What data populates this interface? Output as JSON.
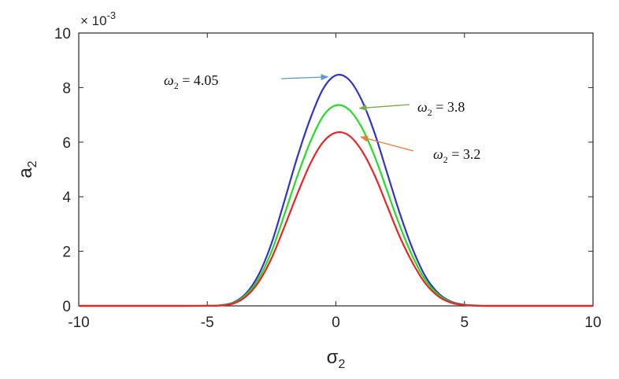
{
  "chart_data": {
    "type": "line",
    "xlabel": "σ",
    "xlabel_sub": "2",
    "ylabel": "a",
    "ylabel_sub": "2",
    "y_multiplier": "× 10",
    "y_multiplier_exp": "-3",
    "xlim": [
      -10,
      10
    ],
    "ylim": [
      0,
      10
    ],
    "xticks": [
      "-10",
      "-5",
      "0",
      "5",
      "10"
    ],
    "yticks": [
      "0",
      "2",
      "4",
      "6",
      "8",
      "10"
    ],
    "grid": false,
    "series": [
      {
        "color": "#3333cc",
        "x": [
          -10,
          -8,
          -6,
          -5,
          -4.5,
          -4,
          -3.5,
          -3,
          -2.5,
          -2,
          -1.5,
          -1,
          -0.5,
          0,
          0.5,
          1,
          1.5,
          2,
          2.5,
          3,
          3.5,
          4,
          4.5,
          5,
          5.5,
          6,
          8,
          10
        ],
        "y": [
          0,
          0,
          0,
          0.003,
          0.02,
          0.12,
          0.45,
          1.15,
          2.3,
          3.85,
          5.45,
          6.85,
          7.95,
          8.45,
          8.3,
          7.55,
          6.35,
          4.85,
          3.35,
          2.05,
          1.05,
          0.45,
          0.15,
          0.04,
          0.01,
          0,
          0,
          0
        ]
      },
      {
        "color": "#22dd22",
        "x": [
          -10,
          -8,
          -6,
          -5,
          -4.5,
          -4,
          -3.5,
          -3,
          -2.5,
          -2,
          -1.5,
          -1,
          -0.5,
          0,
          0.5,
          1,
          1.5,
          2,
          2.5,
          3,
          3.5,
          4,
          4.5,
          5,
          5.5,
          6,
          8,
          10
        ],
        "y": [
          0,
          0,
          0,
          0.003,
          0.02,
          0.1,
          0.4,
          1.0,
          2.0,
          3.35,
          4.75,
          6.0,
          6.95,
          7.35,
          7.2,
          6.55,
          5.5,
          4.2,
          2.9,
          1.78,
          0.92,
          0.4,
          0.13,
          0.035,
          0.008,
          0,
          0,
          0
        ]
      },
      {
        "color": "#ee2222",
        "x": [
          -10,
          -8,
          -6,
          -5,
          -4.5,
          -4,
          -3.5,
          -3,
          -2.5,
          -2,
          -1.5,
          -1,
          -0.5,
          0,
          0.5,
          1,
          1.5,
          2,
          2.5,
          3,
          3.5,
          4,
          4.5,
          5,
          5.5,
          6,
          8,
          10
        ],
        "y": [
          0,
          0,
          0,
          0.002,
          0.015,
          0.08,
          0.34,
          0.88,
          1.75,
          2.9,
          4.1,
          5.2,
          6.0,
          6.35,
          6.25,
          5.7,
          4.8,
          3.65,
          2.5,
          1.55,
          0.8,
          0.34,
          0.11,
          0.03,
          0.007,
          0,
          0,
          0
        ]
      }
    ],
    "annotations": [
      {
        "symbol": "ω",
        "sub": "2",
        "text": " = 4.05",
        "arrow_color": "#5b9bd5",
        "target": [
          0,
          8.45
        ]
      },
      {
        "symbol": "ω",
        "sub": "2",
        "text": " = 3.8",
        "arrow_color": "#70ad47",
        "target": [
          0.55,
          7.3
        ]
      },
      {
        "symbol": "ω",
        "sub": "2",
        "text": " = 3.2",
        "arrow_color": "#ed7d31",
        "target": [
          0.6,
          6.25
        ]
      }
    ]
  }
}
